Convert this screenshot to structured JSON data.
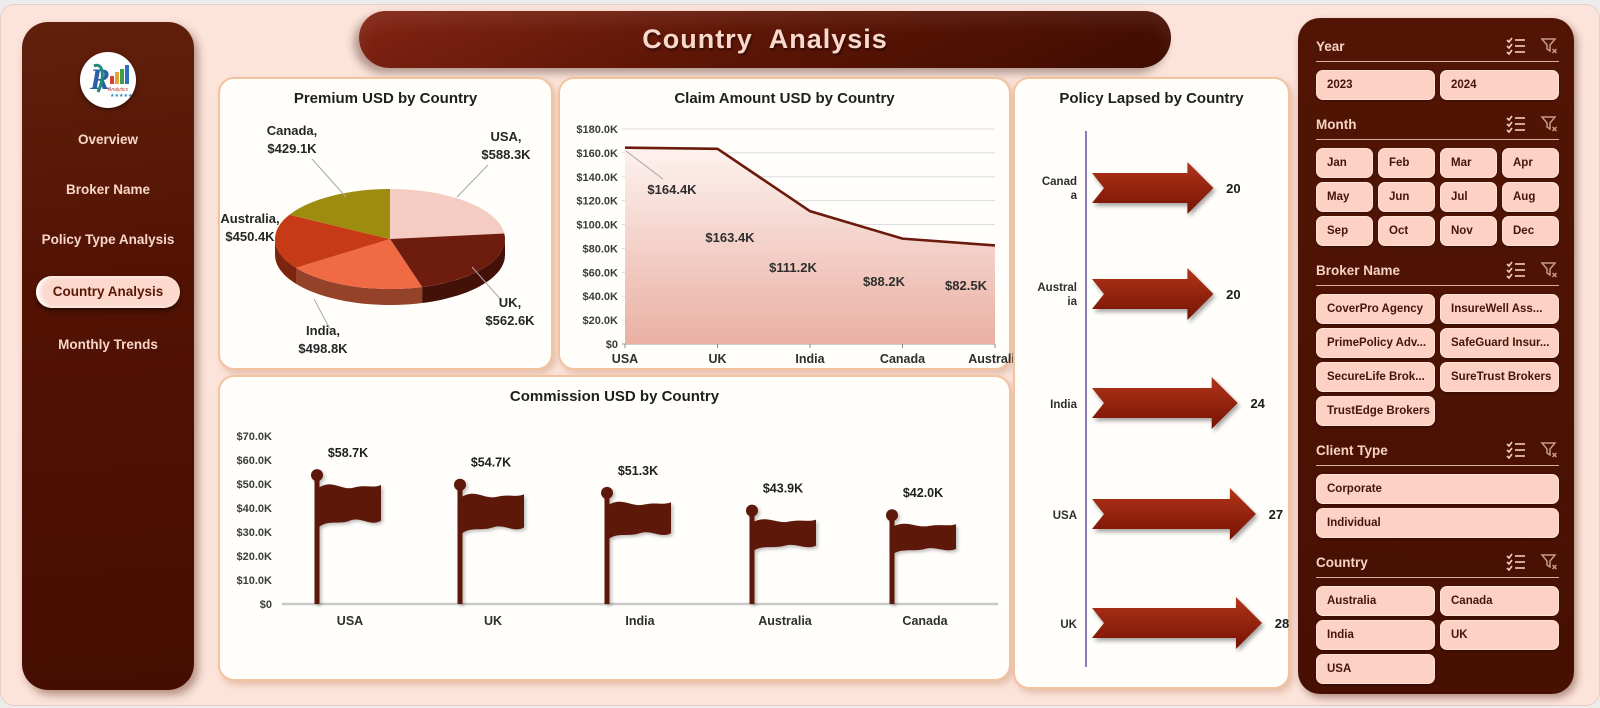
{
  "title": "Country  Analysis",
  "nav": {
    "items": [
      "Overview",
      "Broker Name",
      "Policy Type Analysis",
      "Country Analysis",
      "Monthly Trends"
    ],
    "active": "Country Analysis"
  },
  "slicers": [
    {
      "title": "Year",
      "columns": 2,
      "options": [
        "2023",
        "2024"
      ]
    },
    {
      "title": "Month",
      "columns": 4,
      "options": [
        "Jan",
        "Feb",
        "Mar",
        "Apr",
        "May",
        "Jun",
        "Jul",
        "Aug",
        "Sep",
        "Oct",
        "Nov",
        "Dec"
      ]
    },
    {
      "title": "Broker Name",
      "columns": 2,
      "options": [
        "CoverPro Agency",
        "InsureWell Ass...",
        "PrimePolicy Adv...",
        "SafeGuard Insur...",
        "SecureLife Brok...",
        "SureTrust Brokers",
        "TrustEdge Brokers"
      ]
    },
    {
      "title": "Client Type",
      "columns": 1,
      "options": [
        "Corporate",
        "Individual"
      ]
    },
    {
      "title": "Country",
      "columns": 2,
      "options": [
        "Australia",
        "Canada",
        "India",
        "UK",
        "USA"
      ]
    }
  ],
  "chart_data": [
    {
      "type": "pie",
      "style": "3d",
      "title": "Premium USD by Country",
      "categories": [
        "USA",
        "UK",
        "India",
        "Australia",
        "Canada"
      ],
      "values_k_usd": [
        588.3,
        562.6,
        498.8,
        450.4,
        429.1
      ],
      "data_labels": [
        [
          "USA,",
          "$588.3K"
        ],
        [
          "UK,",
          "$562.6K"
        ],
        [
          "India,",
          "$498.8K"
        ],
        [
          "Australia,",
          "$450.4K"
        ],
        [
          "Canada,",
          "$429.1K"
        ]
      ],
      "colors": [
        "#f4ccc1",
        "#6e1c0d",
        "#f06a43",
        "#c63a16",
        "#9e8c10"
      ]
    },
    {
      "type": "area",
      "title": "Claim Amount USD by Country",
      "categories": [
        "USA",
        "UK",
        "India",
        "Canada",
        "Australia"
      ],
      "values_k_usd": [
        164.4,
        163.4,
        111.2,
        88.2,
        82.5
      ],
      "data_labels": [
        "$164.4K",
        "$163.4K",
        "$111.2K",
        "$88.2K",
        "$82.5K"
      ],
      "y_ticks": [
        "$180.0K",
        "$160.0K",
        "$140.0K",
        "$120.0K",
        "$100.0K",
        "$80.0K",
        "$60.0K",
        "$40.0K",
        "$20.0K",
        "$0"
      ],
      "ylim_k": [
        0,
        180
      ],
      "grid": true,
      "line_color": "#6b1a0c",
      "fill_top": "#fdf2ef",
      "fill_bottom": "#eab0a3"
    },
    {
      "type": "bar",
      "style": "flag-pictograph",
      "title": "Commission USD by Country",
      "categories": [
        "USA",
        "UK",
        "India",
        "Australia",
        "Canada"
      ],
      "values_k_usd": [
        58.7,
        54.7,
        51.3,
        43.9,
        42.0
      ],
      "data_labels": [
        "$58.7K",
        "$54.7K",
        "$51.3K",
        "$43.9K",
        "$42.0K"
      ],
      "y_ticks": [
        "$70.0K",
        "$60.0K",
        "$50.0K",
        "$40.0K",
        "$30.0K",
        "$20.0K",
        "$10.0K",
        "$0"
      ],
      "ylim_k": [
        0,
        70
      ],
      "bar_color": "#5e180a"
    },
    {
      "type": "bar-horizontal",
      "style": "arrow",
      "title": "Policy Lapsed by Country",
      "categories": [
        "Canada",
        "Australia",
        "India",
        "USA",
        "UK"
      ],
      "category_display": [
        [
          "Canad",
          "a"
        ],
        [
          "Austral",
          "ia"
        ],
        [
          "India"
        ],
        [
          "USA"
        ],
        [
          "UK"
        ]
      ],
      "values": [
        20,
        20,
        24,
        27,
        28
      ],
      "arrow_color": "#9a2513",
      "axis_color": "#8d79b6"
    }
  ],
  "theme": {
    "page_bg": "#fce4db",
    "panel_bg": "#4c1204",
    "accent_maroon": "#5e1606",
    "button_bg": "#fdd1c3",
    "button_text": "#44150a",
    "header_text": "#f7d3c5",
    "card_border": "#f3c29e"
  }
}
